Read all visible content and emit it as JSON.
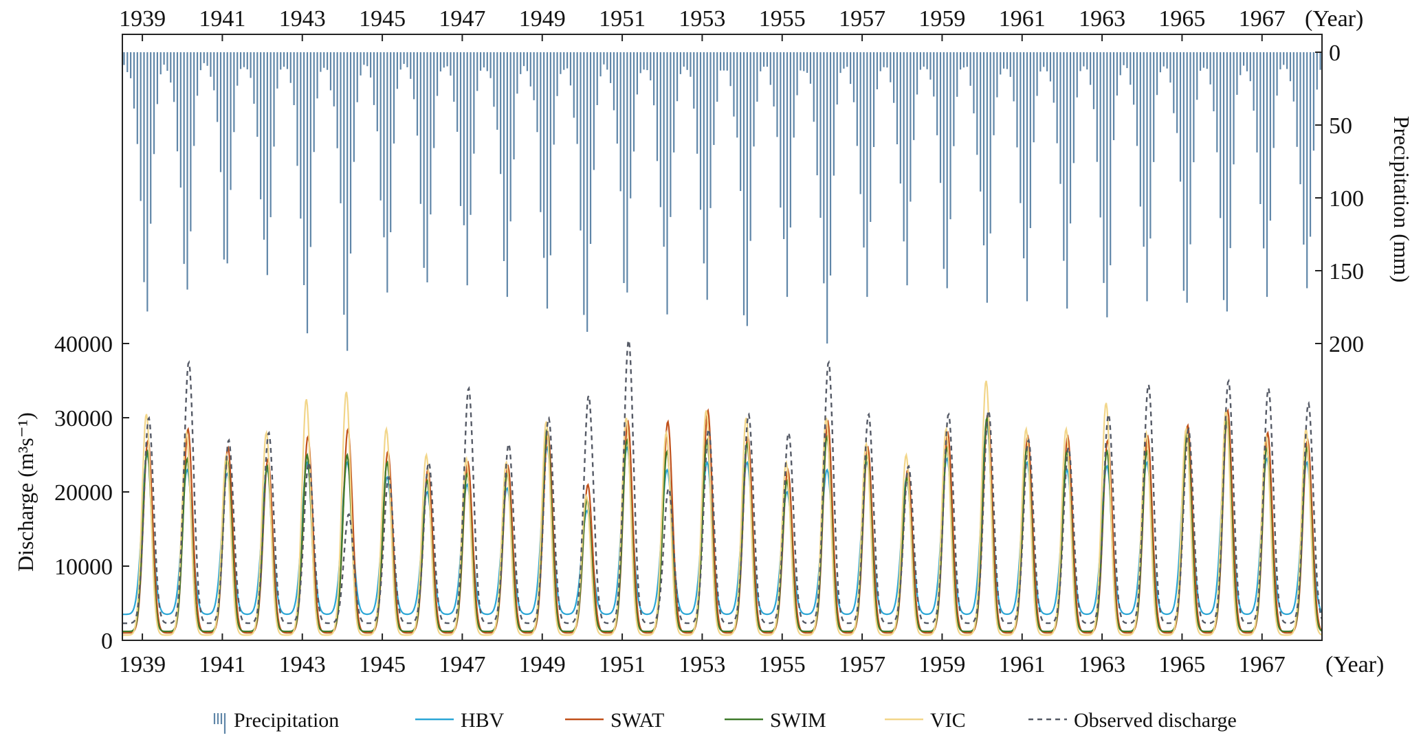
{
  "chart_data": {
    "type": "line",
    "x_axis": {
      "unit_label": "(Year)",
      "ticks": [
        "1939",
        "1941",
        "1943",
        "1945",
        "1947",
        "1949",
        "1951",
        "1953",
        "1955",
        "1957",
        "1959",
        "1961",
        "1963",
        "1965",
        "1967"
      ],
      "range": [
        1938.5,
        1968.5
      ]
    },
    "left_axis": {
      "label": "Discharge",
      "unit": "(m³s⁻¹)",
      "ticks": [
        "0",
        "10000",
        "20000",
        "30000",
        "40000"
      ],
      "range": [
        0,
        40000
      ]
    },
    "right_axis": {
      "label": "Precipitation (mm)",
      "ticks": [
        "0",
        "50",
        "100",
        "150",
        "200"
      ],
      "range": [
        0,
        200
      ],
      "inverted": true
    },
    "years": [
      1939,
      1940,
      1941,
      1942,
      1943,
      1944,
      1945,
      1946,
      1947,
      1948,
      1949,
      1950,
      1951,
      1952,
      1953,
      1954,
      1955,
      1956,
      1957,
      1958,
      1959,
      1960,
      1961,
      1962,
      1963,
      1964,
      1965,
      1966,
      1967,
      1968
    ],
    "annual_peak_precipitation_mm": [
      178,
      163,
      145,
      153,
      193,
      205,
      165,
      158,
      160,
      168,
      176,
      192,
      165,
      180,
      170,
      188,
      168,
      200,
      168,
      160,
      162,
      172,
      171,
      176,
      182,
      171,
      172,
      178,
      168,
      162
    ],
    "annual_peak_discharge": {
      "HBV": [
        25000,
        23000,
        22500,
        23000,
        24000,
        24000,
        22000,
        20000,
        21000,
        20500,
        26000,
        17500,
        26000,
        23000,
        24000,
        24000,
        20000,
        23000,
        24000,
        22000,
        24500,
        29000,
        24000,
        23000,
        23500,
        24000,
        27000,
        29000,
        24500,
        24000
      ],
      "SWAT": [
        27000,
        28500,
        26000,
        24500,
        27500,
        28500,
        25500,
        23000,
        24000,
        23500,
        28000,
        21000,
        29500,
        29500,
        31000,
        27500,
        23000,
        29500,
        26000,
        23000,
        28000,
        30500,
        27500,
        27500,
        27000,
        27500,
        29000,
        31000,
        28000,
        27000
      ],
      "SWIM": [
        25500,
        24500,
        24500,
        23500,
        25000,
        25000,
        24000,
        21500,
        22500,
        22500,
        28500,
        19000,
        27000,
        25500,
        27000,
        26500,
        21500,
        27500,
        25000,
        22000,
        26000,
        30000,
        26000,
        25500,
        25500,
        25500,
        28000,
        30000,
        26000,
        26000
      ],
      "VIC": [
        30500,
        28000,
        25000,
        28000,
        32500,
        33500,
        28500,
        25000,
        24500,
        24000,
        29500,
        19500,
        30000,
        28000,
        31000,
        30000,
        24000,
        30000,
        26500,
        25000,
        28500,
        35000,
        28500,
        28500,
        32000,
        28000,
        28500,
        31000,
        27500,
        28500
      ],
      "Observed": [
        30000,
        37500,
        27000,
        28000,
        24000,
        17000,
        22000,
        24000,
        34000,
        26500,
        30000,
        33000,
        40500,
        20500,
        28500,
        30500,
        28000,
        37500,
        30500,
        23500,
        30500,
        31000,
        27000,
        26000,
        30500,
        34500,
        28500,
        35000,
        34000,
        32000
      ]
    },
    "annual_min_discharge": {
      "HBV": 3500,
      "SWAT": 1000,
      "SWIM": 1200,
      "VIC": 700,
      "Observed": 2300
    },
    "series": [
      {
        "name": "Precipitation",
        "color": "#5f86a8",
        "style": "bars"
      },
      {
        "name": "HBV",
        "color": "#2aa6d6",
        "style": "line"
      },
      {
        "name": "SWAT",
        "color": "#c0501a",
        "style": "line"
      },
      {
        "name": "SWIM",
        "color": "#3f7a2a",
        "style": "line"
      },
      {
        "name": "VIC",
        "color": "#f2d68a",
        "style": "line"
      },
      {
        "name": "Observed discharge",
        "color": "#555a66",
        "style": "dashed"
      }
    ],
    "legend_position": "bottom"
  }
}
